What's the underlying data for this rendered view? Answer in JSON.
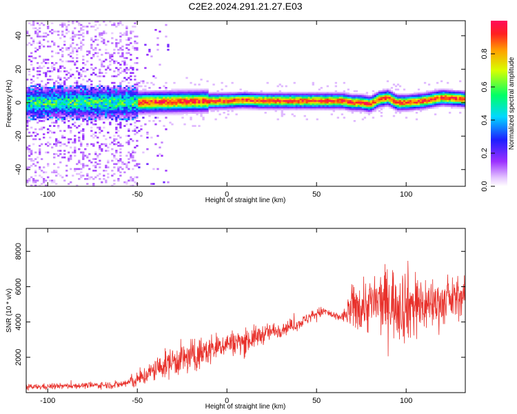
{
  "title": "C2E2.2024.291.21.27.E03",
  "colors": {
    "snr_line": "#e8302a",
    "frame": "#000000",
    "background": "#ffffff"
  },
  "chart_data": [
    {
      "type": "heatmap",
      "xlabel": "Height of straight line (km)",
      "ylabel": "Frequency (Hz)",
      "xlim": [
        -112,
        133
      ],
      "ylim": [
        -50,
        49
      ],
      "xticks": [
        -100,
        -50,
        0,
        50,
        100
      ],
      "yticks": [
        -40,
        -20,
        0,
        20,
        40
      ],
      "grid": false,
      "colorbar": {
        "label": "Normalized spectral amplitude",
        "range": [
          0.0,
          1.0
        ],
        "ticks": [
          0.0,
          0.2,
          0.4,
          0.6,
          0.8
        ],
        "colormap": "rainbow"
      },
      "ridge": {
        "description_points_x": [
          -112,
          -50,
          -30,
          0,
          10,
          20,
          40,
          60,
          65,
          70,
          75,
          80,
          85,
          90,
          95,
          100,
          110,
          120,
          133
        ],
        "center_hz": [
          0,
          0,
          0.5,
          1,
          1.5,
          1,
          1,
          1,
          1,
          0,
          0,
          -1,
          2,
          3,
          0,
          0,
          1,
          3,
          2
        ]
      }
    },
    {
      "type": "line",
      "xlabel": "Height of straight line (km)",
      "ylabel": "SNR (10 * v/v)",
      "xlim": [
        -112,
        133
      ],
      "ylim": [
        0,
        9300
      ],
      "xticks": [
        -100,
        -50,
        0,
        50,
        100
      ],
      "yticks": [
        2000,
        4000,
        6000,
        8000
      ],
      "grid": false,
      "series": [
        {
          "x": [
            -112,
            -100,
            -80,
            -60,
            -50,
            -40,
            -30,
            -20,
            -10,
            0,
            10,
            20,
            30,
            40,
            50,
            55,
            60,
            65,
            70,
            80,
            90,
            100,
            110,
            120,
            133
          ],
          "mean": [
            300,
            350,
            400,
            450,
            700,
            1300,
            1800,
            2000,
            2400,
            2800,
            2900,
            3300,
            3600,
            3900,
            4500,
            4600,
            4300,
            4300,
            4800,
            5000,
            5200,
            5000,
            5000,
            5100,
            5500
          ],
          "spread": [
            150,
            150,
            150,
            200,
            400,
            600,
            800,
            900,
            800,
            600,
            700,
            500,
            400,
            300,
            300,
            250,
            200,
            300,
            1200,
            1500,
            1800,
            2000,
            1500,
            1200,
            900
          ]
        }
      ]
    }
  ]
}
